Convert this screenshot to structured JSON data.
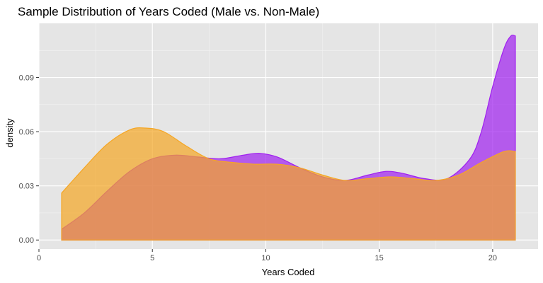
{
  "chart_data": {
    "type": "area",
    "title": "Sample Distribution of Years Coded (Male vs. Non-Male)",
    "xlabel": "Years Coded",
    "ylabel": "density",
    "xlim": [
      0,
      22
    ],
    "ylim": [
      -0.005,
      0.12
    ],
    "x_ticks": [
      0,
      5,
      10,
      15,
      20
    ],
    "x_tick_labels": [
      "0",
      "5",
      "10",
      "15",
      "20"
    ],
    "x_minor_ticks": [
      2.5,
      7.5,
      12.5,
      17.5
    ],
    "y_ticks": [
      0,
      0.03,
      0.06,
      0.09
    ],
    "y_tick_labels": [
      "0.00",
      "0.03",
      "0.06",
      "0.09"
    ],
    "y_minor_ticks": [
      0.015,
      0.045,
      0.075,
      0.105
    ],
    "grid": true,
    "legend": "none",
    "background": "#e5e5e5",
    "series": [
      {
        "color": "#a020f0",
        "fill_opacity": 0.7,
        "x": [
          1,
          2,
          3,
          4,
          5,
          6,
          7,
          8,
          9,
          9.7,
          10.5,
          11.5,
          12.5,
          13.5,
          14.5,
          15.3,
          16,
          17,
          18,
          19,
          19.5,
          20,
          20.5,
          20.8,
          21
        ],
        "y": [
          0.006,
          0.015,
          0.027,
          0.038,
          0.045,
          0.047,
          0.046,
          0.045,
          0.047,
          0.048,
          0.046,
          0.04,
          0.035,
          0.033,
          0.036,
          0.038,
          0.037,
          0.034,
          0.034,
          0.045,
          0.06,
          0.085,
          0.106,
          0.113,
          0.113
        ]
      },
      {
        "color": "#f5a623",
        "fill_opacity": 0.7,
        "x": [
          1,
          2,
          3,
          4,
          4.7,
          5.5,
          6.5,
          7.5,
          8.5,
          9.5,
          10.5,
          11.5,
          12.5,
          13.5,
          14.5,
          15.5,
          16.5,
          17.5,
          18.5,
          19.5,
          20.5,
          21
        ],
        "y": [
          0.026,
          0.04,
          0.053,
          0.061,
          0.062,
          0.06,
          0.052,
          0.045,
          0.043,
          0.042,
          0.042,
          0.04,
          0.036,
          0.033,
          0.034,
          0.035,
          0.034,
          0.033,
          0.036,
          0.043,
          0.049,
          0.049
        ]
      }
    ]
  }
}
